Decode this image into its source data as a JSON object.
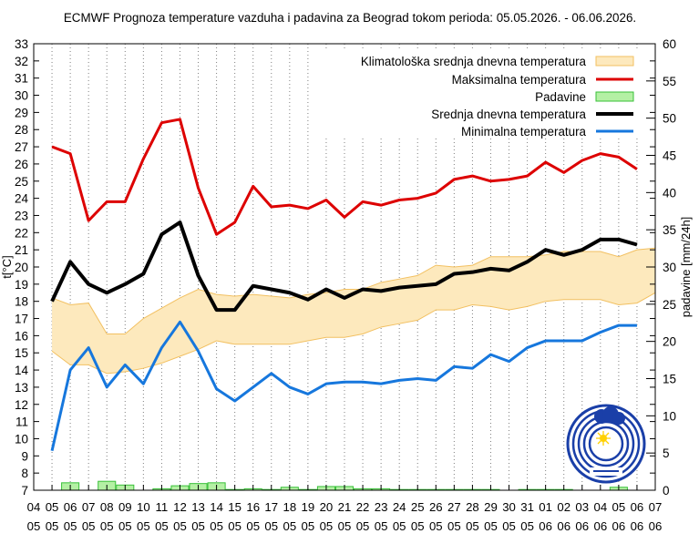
{
  "chart_data": {
    "type": "line",
    "title": "ECMWF Prognoza temperature vazduha i padavina za Beograd tokom perioda: 05.05.2026. - 06.06.2026.",
    "ylabel_left": "t[°C]",
    "ylabel_right": "padavine [mm/24h]",
    "ylim": [
      7,
      33
    ],
    "ylim_right": [
      0,
      60
    ],
    "yticks_left": [
      7,
      8,
      9,
      10,
      11,
      12,
      13,
      14,
      15,
      16,
      17,
      18,
      19,
      20,
      21,
      22,
      23,
      24,
      25,
      26,
      27,
      28,
      29,
      30,
      31,
      32,
      33
    ],
    "yticks_right": [
      0,
      5,
      10,
      15,
      20,
      25,
      30,
      35,
      40,
      45,
      50,
      55,
      60
    ],
    "legend_position": "top-right",
    "grid": "vertical dotted",
    "x_days": [
      "04",
      "05",
      "06",
      "07",
      "08",
      "09",
      "10",
      "11",
      "12",
      "13",
      "14",
      "15",
      "16",
      "17",
      "18",
      "19",
      "20",
      "21",
      "22",
      "23",
      "24",
      "25",
      "26",
      "27",
      "28",
      "29",
      "30",
      "31",
      "01",
      "02",
      "03",
      "04",
      "05",
      "06",
      "07"
    ],
    "x_months": [
      "05",
      "05",
      "05",
      "05",
      "05",
      "05",
      "05",
      "05",
      "05",
      "05",
      "05",
      "05",
      "05",
      "05",
      "05",
      "05",
      "05",
      "05",
      "05",
      "05",
      "05",
      "05",
      "05",
      "05",
      "05",
      "05",
      "05",
      "05",
      "06",
      "06",
      "06",
      "06",
      "06",
      "06",
      "06"
    ],
    "series": [
      {
        "name": "Klimatološka srednja dnevna temperatura",
        "kind": "band",
        "color": "#fde9bd",
        "edge_color": "#f2c061",
        "dates_offset_start": 1,
        "lower": [
          15.1,
          14.3,
          14.3,
          13.8,
          13.9,
          14.1,
          14.4,
          14.8,
          15.2,
          15.7,
          15.5,
          15.5,
          15.5,
          15.5,
          15.7,
          15.9,
          15.9,
          16.1,
          16.5,
          16.7,
          16.9,
          17.5,
          17.5,
          17.8,
          17.7,
          17.5,
          17.7,
          18.0,
          18.1,
          18.1,
          18.1,
          17.8,
          17.9,
          18.5
        ],
        "upper": [
          18.2,
          17.8,
          17.9,
          16.1,
          16.1,
          17.0,
          17.6,
          18.2,
          18.7,
          18.4,
          18.3,
          18.4,
          18.3,
          18.2,
          18.4,
          18.5,
          18.7,
          18.7,
          19.1,
          19.3,
          19.5,
          20.1,
          20.0,
          20.1,
          20.6,
          20.6,
          20.6,
          20.7,
          20.9,
          20.9,
          20.9,
          20.6,
          21.0,
          21.1
        ]
      },
      {
        "name": "Maksimalna temperatura",
        "color": "#dd0000",
        "values": [
          27.0,
          26.6,
          22.7,
          23.8,
          23.8,
          26.3,
          28.4,
          28.6,
          24.6,
          21.9,
          22.6,
          24.7,
          23.5,
          23.6,
          23.4,
          23.9,
          22.9,
          23.8,
          23.6,
          23.9,
          24.0,
          24.3,
          25.1,
          25.3,
          25.0,
          25.1,
          25.3,
          26.1,
          25.5,
          26.2,
          26.6,
          26.4,
          25.7
        ]
      },
      {
        "name": "Padavine",
        "kind": "bars",
        "axis": "right",
        "color": "#b4f0a4",
        "edge_color": "#39c039",
        "values": [
          0,
          1.0,
          0,
          1.2,
          0.7,
          0,
          0.2,
          0.6,
          0.9,
          1.0,
          0.1,
          0.2,
          0.1,
          0.4,
          0.1,
          0.5,
          0.5,
          0.2,
          0.2,
          0.1,
          0.1,
          0.1,
          0.1,
          0.1,
          0.1,
          0,
          0.1,
          0.1,
          0.1,
          0,
          0,
          0.4,
          0
        ]
      },
      {
        "name": "Srednja dnevna temperatura",
        "color": "#000000",
        "values": [
          18.0,
          20.3,
          19.0,
          18.5,
          19.0,
          19.6,
          21.9,
          22.6,
          19.5,
          17.5,
          17.5,
          18.9,
          18.7,
          18.5,
          18.1,
          18.7,
          18.2,
          18.7,
          18.6,
          18.8,
          18.9,
          19.0,
          19.6,
          19.7,
          19.9,
          19.8,
          20.3,
          21.0,
          20.7,
          21.0,
          21.6,
          21.6,
          21.3
        ]
      },
      {
        "name": "Minimalna temperatura",
        "color": "#1677dd",
        "values": [
          9.3,
          14.0,
          15.3,
          13.0,
          14.3,
          13.2,
          15.3,
          16.8,
          15.1,
          12.9,
          12.2,
          13.0,
          13.8,
          13.0,
          12.6,
          13.2,
          13.3,
          13.3,
          13.2,
          13.4,
          13.5,
          13.4,
          14.2,
          14.1,
          14.9,
          14.5,
          15.3,
          15.7,
          15.7,
          15.7,
          16.2,
          16.6,
          16.6
        ]
      }
    ]
  }
}
